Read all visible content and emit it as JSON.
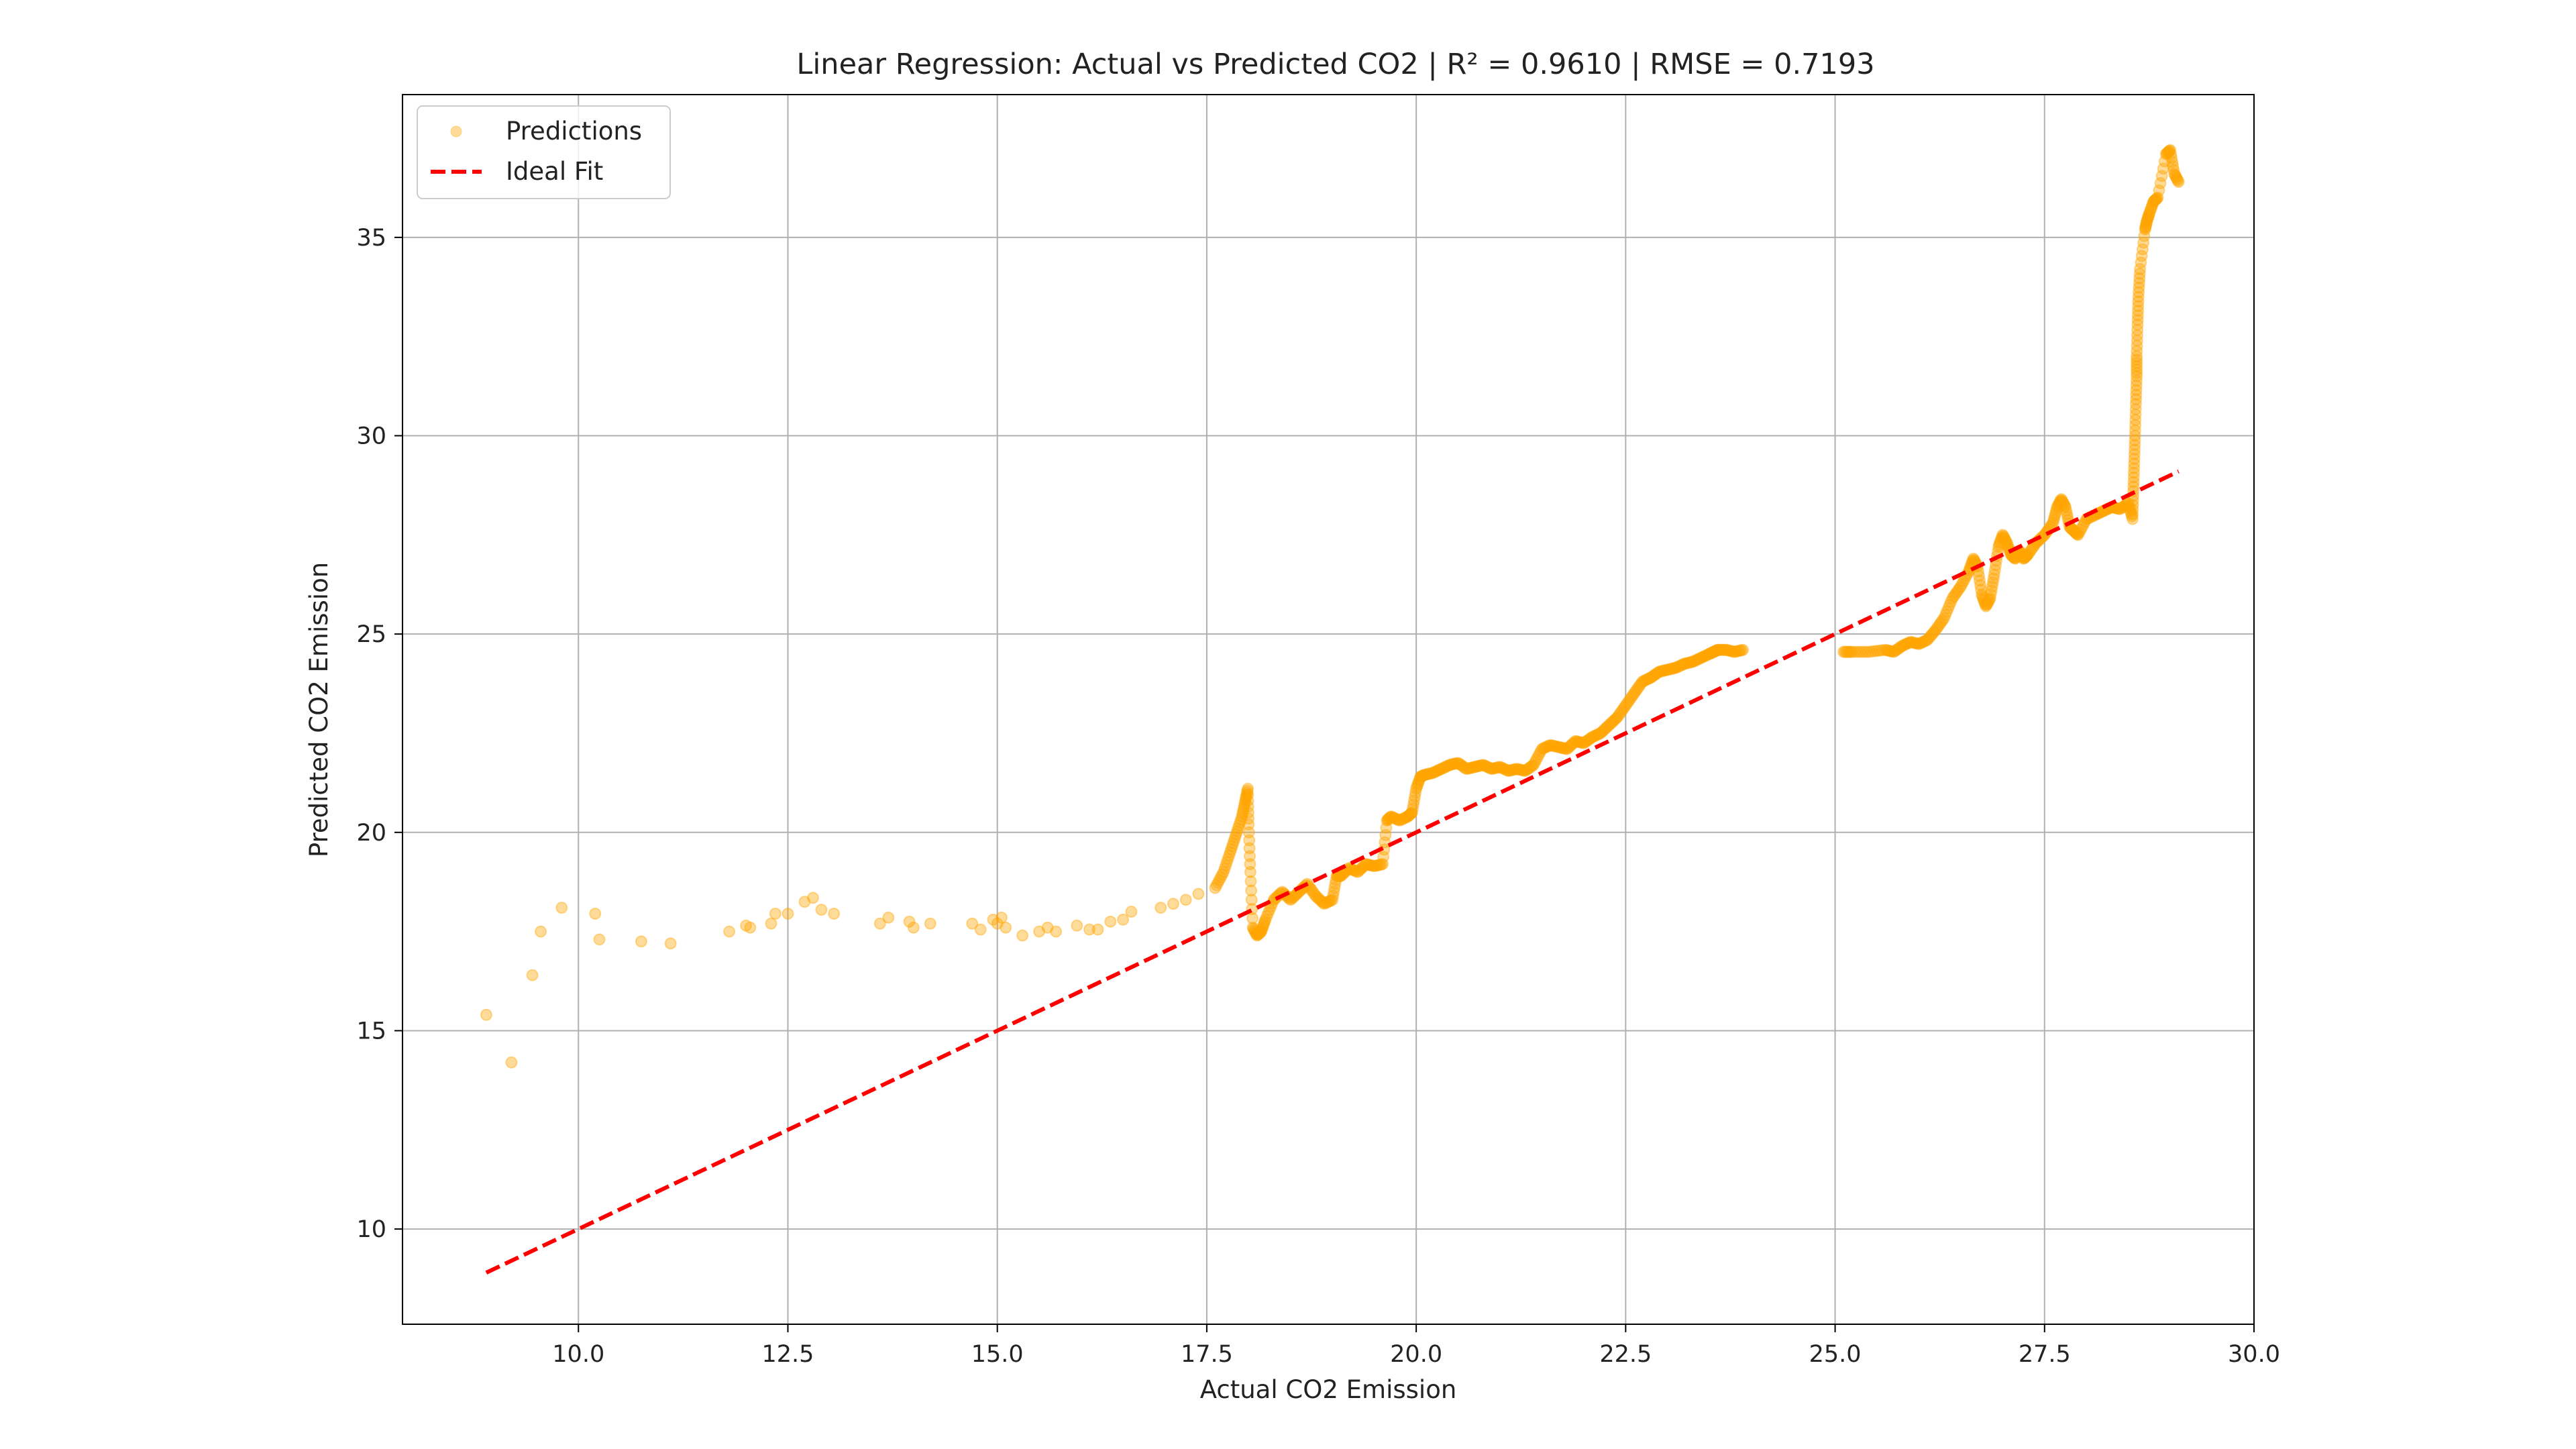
{
  "chart_data": {
    "type": "scatter",
    "title": "Linear Regression: Actual vs Predicted CO2  |  R² = 0.9610  |  RMSE = 0.7193",
    "xlabel": "Actual CO2 Emission",
    "ylabel": "Predicted CO2 Emission",
    "xlim": [
      7.9,
      30.0
    ],
    "ylim": [
      7.6,
      38.6
    ],
    "xticks": [
      "10.0",
      "12.5",
      "15.0",
      "17.5",
      "20.0",
      "22.5",
      "25.0",
      "27.5",
      "30.0"
    ],
    "yticks": [
      "10",
      "15",
      "20",
      "25",
      "30",
      "35"
    ],
    "grid": true,
    "legend_position": "top-left",
    "series": [
      {
        "name": "Predictions",
        "kind": "scatter",
        "color": "#FFA500",
        "points": [
          [
            8.9,
            15.4
          ],
          [
            9.2,
            14.2
          ],
          [
            9.45,
            16.4
          ],
          [
            9.55,
            17.5
          ],
          [
            9.8,
            18.1
          ],
          [
            10.2,
            17.95
          ],
          [
            10.25,
            17.3
          ],
          [
            10.75,
            17.25
          ],
          [
            11.1,
            17.2
          ],
          [
            11.8,
            17.5
          ],
          [
            12.0,
            17.65
          ],
          [
            12.05,
            17.6
          ],
          [
            12.3,
            17.7
          ],
          [
            12.35,
            17.95
          ],
          [
            12.5,
            17.95
          ],
          [
            12.7,
            18.25
          ],
          [
            12.8,
            18.35
          ],
          [
            12.9,
            18.05
          ],
          [
            13.05,
            17.95
          ],
          [
            13.6,
            17.7
          ],
          [
            13.7,
            17.85
          ],
          [
            13.95,
            17.75
          ],
          [
            14.0,
            17.6
          ],
          [
            14.2,
            17.7
          ],
          [
            14.7,
            17.7
          ],
          [
            14.8,
            17.55
          ],
          [
            14.95,
            17.8
          ],
          [
            15.0,
            17.7
          ],
          [
            15.05,
            17.85
          ],
          [
            15.1,
            17.6
          ],
          [
            15.3,
            17.4
          ],
          [
            15.5,
            17.5
          ],
          [
            15.6,
            17.6
          ],
          [
            15.7,
            17.5
          ],
          [
            15.95,
            17.65
          ],
          [
            16.1,
            17.55
          ],
          [
            16.2,
            17.55
          ],
          [
            16.35,
            17.75
          ],
          [
            16.5,
            17.8
          ],
          [
            16.6,
            18.0
          ],
          [
            16.95,
            18.1
          ],
          [
            17.1,
            18.2
          ],
          [
            17.25,
            18.3
          ],
          [
            17.4,
            18.45
          ],
          [
            17.6,
            18.6
          ],
          [
            17.7,
            19.0
          ],
          [
            17.78,
            19.5
          ],
          [
            17.85,
            19.95
          ],
          [
            17.92,
            20.4
          ],
          [
            17.96,
            20.8
          ],
          [
            17.99,
            21.1
          ],
          [
            18.0,
            20.2
          ],
          [
            18.02,
            19.0
          ],
          [
            18.05,
            17.6
          ],
          [
            18.1,
            17.4
          ],
          [
            18.15,
            17.5
          ],
          [
            18.2,
            17.8
          ],
          [
            18.3,
            18.3
          ],
          [
            18.4,
            18.5
          ],
          [
            18.5,
            18.3
          ],
          [
            18.6,
            18.5
          ],
          [
            18.7,
            18.7
          ],
          [
            18.8,
            18.4
          ],
          [
            18.9,
            18.2
          ],
          [
            19.0,
            18.3
          ],
          [
            19.05,
            18.9
          ],
          [
            19.1,
            18.9
          ],
          [
            19.2,
            19.1
          ],
          [
            19.3,
            19.0
          ],
          [
            19.4,
            19.2
          ],
          [
            19.5,
            19.15
          ],
          [
            19.6,
            19.2
          ],
          [
            19.65,
            20.3
          ],
          [
            19.7,
            20.4
          ],
          [
            19.8,
            20.3
          ],
          [
            19.9,
            20.4
          ],
          [
            19.95,
            20.5
          ],
          [
            20.0,
            21.1
          ],
          [
            20.05,
            21.4
          ],
          [
            20.1,
            21.45
          ],
          [
            20.2,
            21.5
          ],
          [
            20.3,
            21.6
          ],
          [
            20.4,
            21.7
          ],
          [
            20.5,
            21.75
          ],
          [
            20.6,
            21.6
          ],
          [
            20.7,
            21.65
          ],
          [
            20.8,
            21.7
          ],
          [
            20.9,
            21.6
          ],
          [
            21.0,
            21.65
          ],
          [
            21.1,
            21.55
          ],
          [
            21.2,
            21.6
          ],
          [
            21.3,
            21.55
          ],
          [
            21.4,
            21.7
          ],
          [
            21.5,
            22.1
          ],
          [
            21.6,
            22.2
          ],
          [
            21.7,
            22.15
          ],
          [
            21.8,
            22.1
          ],
          [
            21.9,
            22.3
          ],
          [
            22.0,
            22.25
          ],
          [
            22.1,
            22.4
          ],
          [
            22.2,
            22.5
          ],
          [
            22.3,
            22.7
          ],
          [
            22.4,
            22.9
          ],
          [
            22.5,
            23.2
          ],
          [
            22.6,
            23.5
          ],
          [
            22.7,
            23.8
          ],
          [
            22.8,
            23.9
          ],
          [
            22.9,
            24.05
          ],
          [
            23.0,
            24.1
          ],
          [
            23.1,
            24.15
          ],
          [
            23.2,
            24.25
          ],
          [
            23.3,
            24.3
          ],
          [
            23.4,
            24.4
          ],
          [
            23.5,
            24.5
          ],
          [
            23.55,
            24.55
          ],
          [
            23.6,
            24.6
          ],
          [
            23.7,
            24.6
          ],
          [
            23.8,
            24.55
          ],
          [
            23.9,
            24.6
          ],
          [
            25.1,
            24.55
          ],
          [
            25.2,
            24.55
          ],
          [
            25.4,
            24.55
          ],
          [
            25.6,
            24.6
          ],
          [
            25.7,
            24.55
          ],
          [
            25.8,
            24.7
          ],
          [
            25.9,
            24.8
          ],
          [
            26.0,
            24.75
          ],
          [
            26.1,
            24.85
          ],
          [
            26.2,
            25.1
          ],
          [
            26.3,
            25.4
          ],
          [
            26.4,
            25.9
          ],
          [
            26.5,
            26.2
          ],
          [
            26.6,
            26.6
          ],
          [
            26.65,
            26.9
          ],
          [
            26.7,
            26.7
          ],
          [
            26.75,
            26.0
          ],
          [
            26.8,
            25.7
          ],
          [
            26.85,
            25.9
          ],
          [
            26.9,
            26.5
          ],
          [
            26.95,
            27.2
          ],
          [
            27.0,
            27.5
          ],
          [
            27.05,
            27.3
          ],
          [
            27.1,
            27.0
          ],
          [
            27.15,
            26.9
          ],
          [
            27.2,
            27.1
          ],
          [
            27.25,
            26.9
          ],
          [
            27.3,
            27.0
          ],
          [
            27.4,
            27.3
          ],
          [
            27.5,
            27.5
          ],
          [
            27.6,
            27.8
          ],
          [
            27.65,
            28.2
          ],
          [
            27.7,
            28.4
          ],
          [
            27.75,
            28.2
          ],
          [
            27.8,
            27.7
          ],
          [
            27.85,
            27.6
          ],
          [
            27.9,
            27.5
          ],
          [
            28.0,
            27.9
          ],
          [
            28.1,
            28.0
          ],
          [
            28.2,
            28.1
          ],
          [
            28.3,
            28.2
          ],
          [
            28.4,
            28.15
          ],
          [
            28.5,
            28.3
          ],
          [
            28.55,
            27.9
          ],
          [
            28.56,
            28.6
          ],
          [
            28.57,
            29.3
          ],
          [
            28.58,
            30.0
          ],
          [
            28.59,
            30.8
          ],
          [
            28.6,
            31.5
          ],
          [
            28.6,
            32.0
          ],
          [
            28.61,
            32.8
          ],
          [
            28.62,
            33.5
          ],
          [
            28.64,
            34.2
          ],
          [
            28.7,
            35.2
          ],
          [
            28.72,
            35.4
          ],
          [
            28.75,
            35.6
          ],
          [
            28.8,
            35.9
          ],
          [
            28.85,
            36.0
          ],
          [
            28.95,
            37.1
          ],
          [
            29.0,
            37.2
          ],
          [
            29.05,
            36.6
          ],
          [
            29.1,
            36.4
          ]
        ]
      },
      {
        "name": "Ideal Fit",
        "kind": "line",
        "color": "#FF0000",
        "dashed": true,
        "x": [
          8.9,
          29.1
        ],
        "y": [
          8.9,
          29.1
        ]
      }
    ]
  }
}
